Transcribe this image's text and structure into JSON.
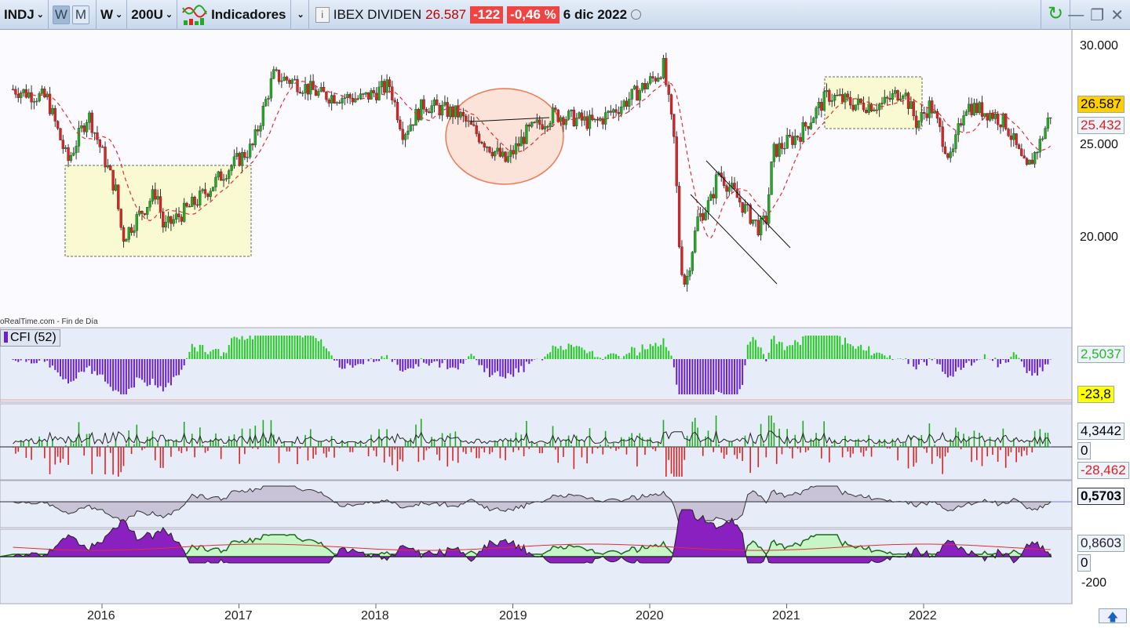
{
  "toolbar": {
    "symbol": "INDJ",
    "period_w": "W",
    "period_m": "M",
    "timeframe": "W",
    "bars": "200U",
    "indicators": "Indicadores",
    "instrument": "IBEX DIVIDEN",
    "last": "26.587",
    "change": "-122",
    "change_pct": "-0,46 %",
    "date": "6 dic 2022"
  },
  "price_axis": {
    "labels": [
      "30.000",
      "25.000",
      "20.000"
    ],
    "last_price": "26.587",
    "ma_value": "25.432"
  },
  "source": "oRealTime.com - Fin de Día",
  "panels": {
    "cfi_label": "CFI (52)",
    "cfi_value": "2,5037",
    "cfi_level": "-23,8",
    "p2_high": "4,3442",
    "p2_zero": "0",
    "p2_low": "-28,462",
    "p3_value": "0,5703",
    "p4_value": "0,8603",
    "p4_zero": "0",
    "p4_tick": "-200"
  },
  "x_axis": [
    "2016",
    "2017",
    "2018",
    "2019",
    "2020",
    "2021",
    "2022"
  ],
  "colors": {
    "up": "#22aa22",
    "down": "#dd2222",
    "ma": "#e03030",
    "cfi_neg": "#6a1fd0",
    "cfi_pos": "#22cc22",
    "highlight": "#fafad2"
  }
}
